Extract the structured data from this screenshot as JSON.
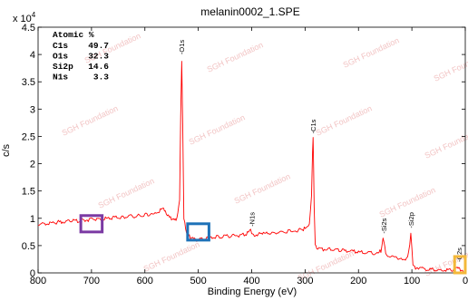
{
  "chart_data": {
    "type": "line",
    "title": "melanin0002_1.SPE",
    "xlabel": "Binding Energy (eV)",
    "ylabel": "c/s",
    "y_multiplier": "x 10",
    "y_multiplier_exp": "4",
    "xlim": [
      800,
      0
    ],
    "ylim": [
      0,
      4.5
    ],
    "x_ticks": [
      800,
      700,
      600,
      500,
      400,
      300,
      200,
      100,
      0
    ],
    "y_ticks": [
      0,
      0.5,
      1,
      1.5,
      2,
      2.5,
      3,
      3.5,
      4,
      4.5
    ],
    "grid": false,
    "series_color": "#ff0000",
    "atomic_table": {
      "header": "Atomic %",
      "rows": [
        {
          "element": "C1s",
          "value": "49.7"
        },
        {
          "element": "O1s",
          "value": "32.3"
        },
        {
          "element": "Si2p",
          "value": "14.6"
        },
        {
          "element": "N1s",
          "value": "3.3"
        }
      ]
    },
    "peak_labels": [
      {
        "label": "-O1s",
        "x": 532,
        "y": 4.0
      },
      {
        "label": "-C1s",
        "x": 285,
        "y": 2.55
      },
      {
        "label": "-N1s",
        "x": 400,
        "y": 0.85
      },
      {
        "label": "-Si2s",
        "x": 153,
        "y": 0.72
      },
      {
        "label": "-Si2p",
        "x": 102,
        "y": 0.82
      },
      {
        "label": "-C2s",
        "x": 12,
        "y": 0.2
      }
    ],
    "spectrum": {
      "x": [
        800,
        760,
        720,
        680,
        640,
        600,
        575,
        565,
        560,
        552,
        545,
        540,
        535,
        533,
        531,
        529,
        527,
        522,
        515,
        505,
        495,
        480,
        460,
        440,
        420,
        410,
        402,
        398,
        395,
        380,
        360,
        340,
        320,
        305,
        298,
        292,
        288,
        286,
        285,
        284,
        283,
        281,
        278,
        272,
        260,
        240,
        220,
        200,
        180,
        165,
        158,
        154,
        152,
        149,
        145,
        135,
        120,
        108,
        104,
        102,
        100,
        98,
        95,
        80,
        60,
        40,
        25,
        15,
        12,
        9,
        5,
        0
      ],
      "y": [
        0.9,
        0.93,
        0.96,
        0.99,
        1.02,
        1.06,
        1.12,
        1.18,
        1.08,
        1.0,
        0.98,
        1.0,
        1.3,
        2.9,
        3.88,
        2.6,
        1.0,
        0.72,
        0.65,
        0.6,
        0.62,
        0.64,
        0.66,
        0.68,
        0.69,
        0.71,
        0.78,
        0.72,
        0.7,
        0.71,
        0.73,
        0.75,
        0.77,
        0.8,
        0.82,
        0.9,
        1.4,
        2.2,
        2.45,
        1.9,
        1.2,
        0.55,
        0.46,
        0.44,
        0.43,
        0.42,
        0.4,
        0.38,
        0.36,
        0.36,
        0.4,
        0.62,
        0.55,
        0.34,
        0.31,
        0.28,
        0.26,
        0.27,
        0.5,
        0.76,
        0.48,
        0.18,
        0.1,
        0.08,
        0.06,
        0.05,
        0.05,
        0.09,
        0.13,
        0.05,
        0.03,
        0.02
      ]
    },
    "highlight_boxes": [
      {
        "color": "#7b3aa3",
        "x": [
          720,
          680
        ],
        "y": [
          0.75,
          1.05
        ]
      },
      {
        "color": "#1e72b8",
        "x": [
          520,
          480
        ],
        "y": [
          0.6,
          0.9
        ]
      },
      {
        "color": "#f3b83a",
        "x": [
          20,
          0
        ],
        "y": [
          0.0,
          0.3
        ]
      }
    ],
    "watermark_text": "SGH Foundation"
  }
}
